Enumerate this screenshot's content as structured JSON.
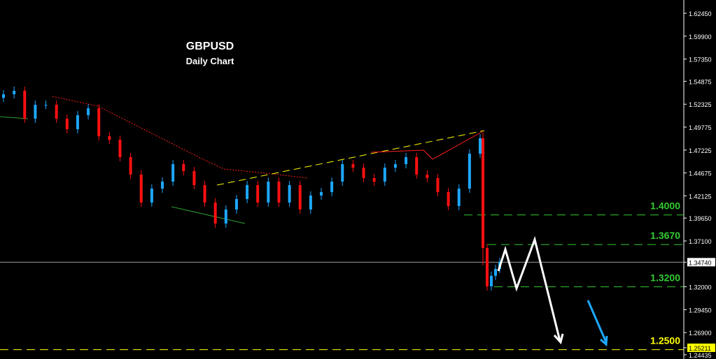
{
  "chart_data": {
    "type": "candlestick",
    "title": "GBPUSD",
    "subtitle": "Daily Chart",
    "ylim": [
      1.2425,
      1.639
    ],
    "y_ticks": [
      "1.62450",
      "1.59900",
      "1.57350",
      "1.54875",
      "1.52325",
      "1.49775",
      "1.47225",
      "1.44675",
      "1.42125",
      "1.39650",
      "1.37100",
      "1.34740",
      "1.32000",
      "1.29450",
      "1.26900",
      "1.25211",
      "1.24435"
    ],
    "current_price": "1.34740",
    "highlight_price": "1.25211",
    "closes": [
      1.5343,
      1.5382,
      1.5071,
      1.5226,
      1.5226,
      1.5071,
      1.4954,
      1.511,
      1.5187,
      1.4876,
      1.4837,
      1.4643,
      1.4449,
      1.4138,
      1.4293,
      1.4371,
      1.4565,
      1.4488,
      1.4332,
      1.4138,
      1.3904,
      1.406,
      1.4177,
      1.4332,
      1.4138,
      1.4371,
      1.4138,
      1.4332,
      1.406,
      1.4216,
      1.4254,
      1.4371,
      1.4565,
      1.4526,
      1.441,
      1.4371,
      1.4526,
      1.4565,
      1.4643,
      1.4449,
      1.441,
      1.4254,
      1.4099,
      1.4293,
      1.4682,
      1.4853,
      1.3632,
      1.3205,
      1.3322,
      1.3399,
      1.3477
    ],
    "bull_color": "#1ea7ff",
    "bear_color": "#ff1010",
    "levels": [
      {
        "label": "1.4000",
        "price": 1.4,
        "color": "#33cc33"
      },
      {
        "label": "1.3670",
        "price": 1.367,
        "color": "#33cc33"
      },
      {
        "label": "1.3200",
        "price": 1.32,
        "color": "#33cc33"
      },
      {
        "label": "1.2500",
        "price": 1.25,
        "color": "#ffff00"
      }
    ]
  }
}
